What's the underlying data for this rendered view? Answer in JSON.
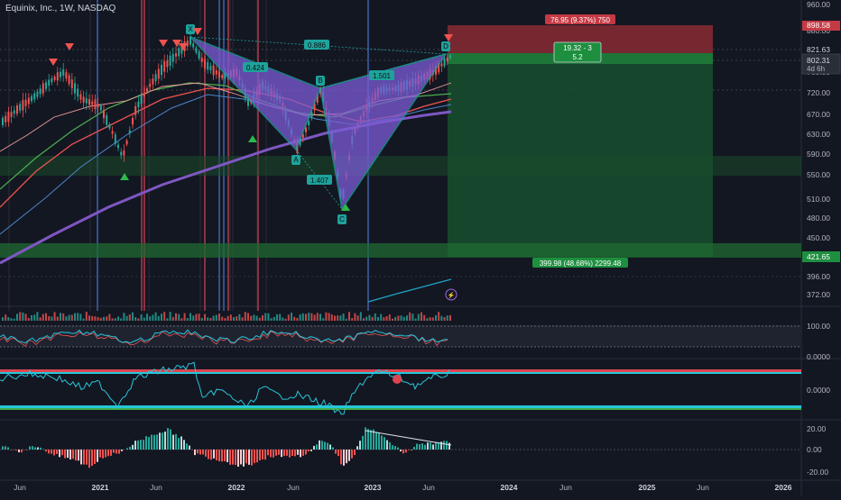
{
  "header": {
    "title": "Equinix, Inc., 1W, NASDAQ"
  },
  "chart_data": [
    {
      "type": "candlestick",
      "pane": "price",
      "title": "Equinix, Inc., 1W, NASDAQ",
      "ylim": [
        360,
        960
      ],
      "price_scale_labels": [
        "960.00",
        "880.00",
        "821.63",
        "760.00",
        "720.00",
        "670.00",
        "630.00",
        "590.00",
        "550.00",
        "510.00",
        "480.00",
        "450.00",
        "421.65",
        "396.00",
        "372.00"
      ],
      "x_tick_labels": [
        "Jun",
        "2021",
        "Jun",
        "2022",
        "Jun",
        "2023",
        "Jun",
        "2024",
        "Jun",
        "2025",
        "Jun",
        "2026"
      ],
      "current_price": {
        "label": "802.31",
        "countdown": "4d 6h"
      },
      "target_price": "898.58",
      "stop_price": "821.63",
      "take_profit_price": "421.65",
      "harmonic_pattern": {
        "points": [
          {
            "label": "X",
            "date": "2021-08",
            "price": 880
          },
          {
            "label": "A",
            "date": "2022-06",
            "price": 610
          },
          {
            "label": "B",
            "date": "2022-08",
            "price": 745
          },
          {
            "label": "C",
            "date": "2022-10",
            "price": 495
          },
          {
            "label": "D",
            "date": "2023-07",
            "price": 845
          }
        ],
        "ratios": [
          "0.424",
          "0.886",
          "1.501",
          "1.407"
        ]
      },
      "position_box": {
        "risk_label": "76.95 (9.37%) 750",
        "mid_label_1": "19.32 - 3",
        "mid_label_2": "5.2",
        "reward_label": "399.98 (48.68%) 2299.48"
      }
    },
    {
      "type": "line",
      "pane": "oscillator",
      "price_scale_labels": [
        "100.00",
        "0.0000"
      ]
    },
    {
      "type": "line",
      "pane": "cci",
      "price_scale_labels": [
        "0.0000"
      ]
    },
    {
      "type": "bar",
      "pane": "histogram",
      "price_scale_labels": [
        "20.00",
        "0.00",
        "-20.00"
      ]
    }
  ],
  "colors": {
    "background": "#131722",
    "up": "#26a69a",
    "down": "#ef5350",
    "pattern": "#7b5cd6",
    "pattern_line": "#1ea39c",
    "risk_zone": "#8a2a33",
    "reward_zone": "#17502e",
    "reward_strong": "#1f7a3a",
    "ma_purple": "#7e57c2",
    "ma_red": "#ef5350",
    "ma_green": "#4caf50",
    "vline_blue": "#3f63a8",
    "vline_red": "#b2394a"
  }
}
